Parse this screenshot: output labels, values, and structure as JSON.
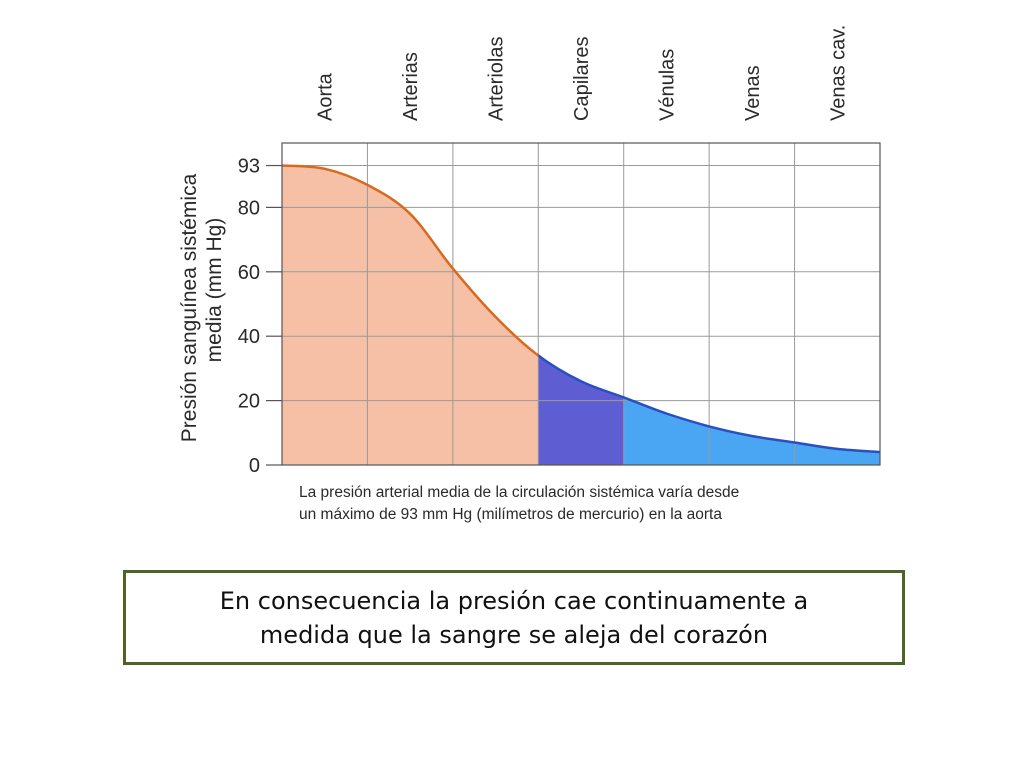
{
  "chart_data": {
    "type": "area",
    "ylabel_lines": [
      "Presión sanguínea sistémica",
      "media (mm Hg)"
    ],
    "categories": [
      "Aorta",
      "Arterias",
      "Arteriolas",
      "Capilares",
      "Vénulas",
      "Venas",
      "Venas cav."
    ],
    "yticks": [
      0,
      20,
      40,
      60,
      80,
      93
    ],
    "ylim": [
      0,
      100
    ],
    "grid": true,
    "series": [
      {
        "x": [
          0,
          0.5,
          1,
          1.5,
          2,
          2.5,
          3,
          3.5,
          4,
          4.5,
          5,
          5.5,
          6,
          6.5,
          7
        ],
        "values": [
          93,
          92,
          87,
          78,
          61,
          46,
          34,
          26,
          21,
          16,
          12,
          9,
          7,
          5,
          4
        ]
      }
    ],
    "regions": [
      {
        "from": 0,
        "to": 3,
        "color": "#f6c0a6"
      },
      {
        "from": 3,
        "to": 4,
        "color": "#5e5ed2"
      },
      {
        "from": 4,
        "to": 7,
        "color": "#4aa6f2"
      }
    ],
    "line_colors": {
      "arterial": "#d76a1e",
      "venous": "#2a4fc0"
    }
  },
  "caption": {
    "line1": "La presión arterial media de la circulación sistémica varía desde",
    "line2": "un máximo de 93 mm Hg (milímetros de mercurio) en la aorta"
  },
  "note": {
    "line1": "En consecuencia la presión cae continuamente a",
    "line2": "medida que la sangre se aleja del corazón"
  },
  "colors": {
    "note_border": "#4f6228"
  }
}
